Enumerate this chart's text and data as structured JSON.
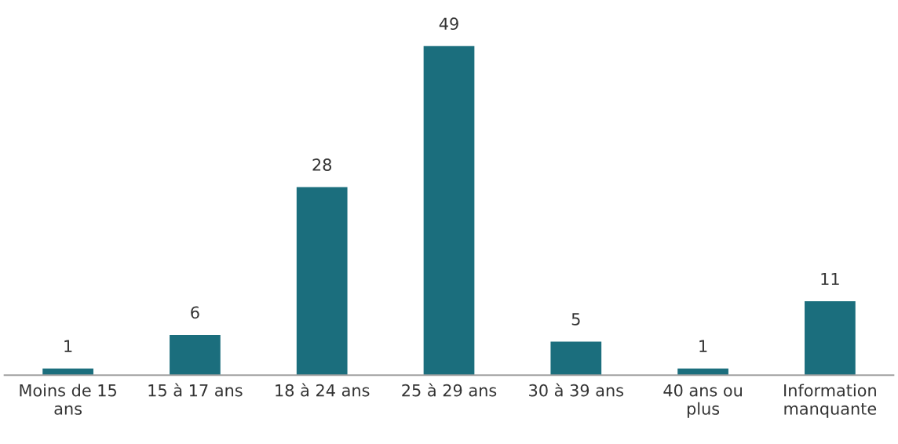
{
  "chart_data": {
    "type": "bar",
    "categories": [
      "Moins de 15\nans",
      "15 à 17 ans",
      "18 à 24 ans",
      "25 à 29 ans",
      "30 à 39 ans",
      "40 ans ou\nplus",
      "Information\nmanquante"
    ],
    "values": [
      1,
      6,
      28,
      49,
      5,
      1,
      11
    ],
    "color": "#1b6e7d",
    "data_labels": true,
    "tick_labels": "x",
    "grid": false,
    "legend": false
  }
}
